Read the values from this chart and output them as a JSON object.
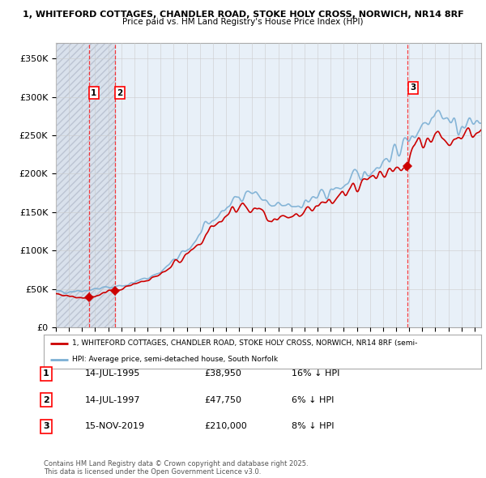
{
  "title1": "1, WHITEFORD COTTAGES, CHANDLER ROAD, STOKE HOLY CROSS, NORWICH, NR14 8RF",
  "title2": "Price paid vs. HM Land Registry's House Price Index (HPI)",
  "ylim": [
    0,
    370000
  ],
  "yticks": [
    0,
    50000,
    100000,
    150000,
    200000,
    250000,
    300000,
    350000
  ],
  "ytick_labels": [
    "£0",
    "£50K",
    "£100K",
    "£150K",
    "£200K",
    "£250K",
    "£300K",
    "£350K"
  ],
  "hpi_color": "#7bafd4",
  "price_color": "#cc0000",
  "purchase_dates": [
    1995.53,
    1997.53,
    2019.87
  ],
  "purchase_prices": [
    38950,
    47750,
    210000
  ],
  "purchase_labels": [
    "1",
    "2",
    "3"
  ],
  "legend_line1": "1, WHITEFORD COTTAGES, CHANDLER ROAD, STOKE HOLY CROSS, NORWICH, NR14 8RF (semi-",
  "legend_line2": "HPI: Average price, semi-detached house, South Norfolk",
  "table_rows": [
    {
      "num": "1",
      "date": "14-JUL-1995",
      "price": "£38,950",
      "pct": "16% ↓ HPI"
    },
    {
      "num": "2",
      "date": "14-JUL-1997",
      "price": "£47,750",
      "pct": "6% ↓ HPI"
    },
    {
      "num": "3",
      "date": "15-NOV-2019",
      "price": "£210,000",
      "pct": "8% ↓ HPI"
    }
  ],
  "footnote": "Contains HM Land Registry data © Crown copyright and database right 2025.\nThis data is licensed under the Open Government Licence v3.0.",
  "grid_color": "#cccccc",
  "hatch_color": "#e0e8f0",
  "bg_blue": "#e8f0f8",
  "xlim_start": 1993.0,
  "xlim_end": 2025.5
}
